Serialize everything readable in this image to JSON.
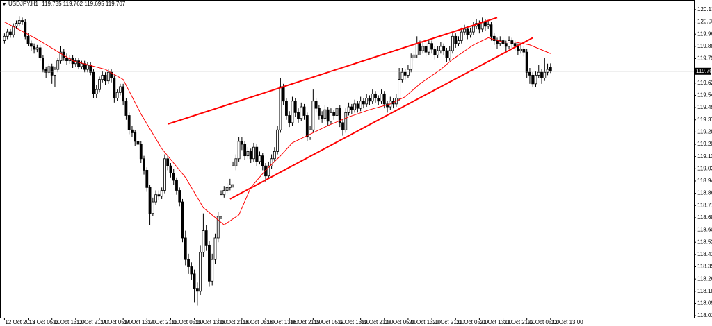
{
  "chart_data": {
    "type": "candlestick",
    "symbol": "USDJPY,H1",
    "ylim": [
      117.996,
      120.202
    ],
    "xlim": [
      -1.5,
      232.3
    ],
    "yticks": [
      {
        "value": 120.135,
        "label": "120.135"
      },
      {
        "value": 120.05,
        "label": "120.050"
      },
      {
        "value": 119.965,
        "label": "119.965"
      },
      {
        "value": 119.88,
        "label": "119.880"
      },
      {
        "value": 119.795,
        "label": "119.795"
      },
      {
        "value": 119.625,
        "label": "119.625"
      },
      {
        "value": 119.54,
        "label": "119.540"
      },
      {
        "value": 119.455,
        "label": "119.455"
      },
      {
        "value": 119.37,
        "label": "119.370"
      },
      {
        "value": 119.285,
        "label": "119.285"
      },
      {
        "value": 119.2,
        "label": "119.200"
      },
      {
        "value": 119.115,
        "label": "119.115"
      },
      {
        "value": 119.03,
        "label": "119.030"
      },
      {
        "value": 118.945,
        "label": "118.945"
      },
      {
        "value": 118.86,
        "label": "118.860"
      },
      {
        "value": 118.775,
        "label": "118.775"
      },
      {
        "value": 118.69,
        "label": "118.690"
      },
      {
        "value": 118.605,
        "label": "118.605"
      },
      {
        "value": 118.52,
        "label": "118.520"
      },
      {
        "value": 118.435,
        "label": "118.435"
      },
      {
        "value": 118.35,
        "label": "118.350"
      },
      {
        "value": 118.265,
        "label": "118.265"
      },
      {
        "value": 118.18,
        "label": "118.180"
      },
      {
        "value": 118.095,
        "label": "118.095"
      },
      {
        "value": 118.01,
        "label": "118.010"
      }
    ],
    "xticks": [
      {
        "value": 0,
        "label": "12 Oct 2015"
      },
      {
        "value": 8,
        "label": "13 Oct 05:00"
      },
      {
        "value": 16,
        "label": "13 Oct 13:00"
      },
      {
        "value": 24,
        "label": "13 Oct 21:00"
      },
      {
        "value": 32,
        "label": "14 Oct 05:00"
      },
      {
        "value": 40,
        "label": "14 Oct 13:00"
      },
      {
        "value": 48,
        "label": "14 Oct 21:00"
      },
      {
        "value": 56,
        "label": "15 Oct 05:00"
      },
      {
        "value": 64,
        "label": "15 Oct 13:00"
      },
      {
        "value": 72,
        "label": "15 Oct 21:00"
      },
      {
        "value": 80,
        "label": "16 Oct 05:00"
      },
      {
        "value": 88,
        "label": "16 Oct 13:00"
      },
      {
        "value": 96,
        "label": "16 Oct 21:00"
      },
      {
        "value": 104,
        "label": "19 Oct 05:00"
      },
      {
        "value": 112,
        "label": "19 Oct 13:00"
      },
      {
        "value": 120,
        "label": "19 Oct 21:00"
      },
      {
        "value": 128,
        "label": "20 Oct 05:00"
      },
      {
        "value": 136,
        "label": "20 Oct 13:00"
      },
      {
        "value": 144,
        "label": "20 Oct 21:00"
      },
      {
        "value": 152,
        "label": "21 Oct 05:00"
      },
      {
        "value": 160,
        "label": "21 Oct 13:00"
      },
      {
        "value": 168,
        "label": "21 Oct 21:00"
      },
      {
        "value": 176,
        "label": "22 Oct 05:00"
      },
      {
        "value": 184,
        "label": "22 Oct 13:00"
      }
    ],
    "candles": [
      [
        119.92,
        119.97,
        119.9,
        119.95
      ],
      [
        119.95,
        120.0,
        119.93,
        119.98
      ],
      [
        119.98,
        120.0,
        119.94,
        119.96
      ],
      [
        119.96,
        120.04,
        119.94,
        120.02
      ],
      [
        120.02,
        120.06,
        120.0,
        120.04
      ],
      [
        120.04,
        120.09,
        120.02,
        120.06
      ],
      [
        120.06,
        120.08,
        120.03,
        120.05
      ],
      [
        120.05,
        120.07,
        119.93,
        119.95
      ],
      [
        119.95,
        119.97,
        119.88,
        119.9
      ],
      [
        119.9,
        119.92,
        119.85,
        119.88
      ],
      [
        119.88,
        119.9,
        119.83,
        119.86
      ],
      [
        119.86,
        119.89,
        119.84,
        119.87
      ],
      [
        119.87,
        119.89,
        119.78,
        119.8
      ],
      [
        119.8,
        119.82,
        119.7,
        119.72
      ],
      [
        119.72,
        119.74,
        119.66,
        119.7
      ],
      [
        119.7,
        119.76,
        119.68,
        119.74
      ],
      [
        119.74,
        119.76,
        119.62,
        119.68
      ],
      [
        119.68,
        119.74,
        119.6,
        119.72
      ],
      [
        119.72,
        119.8,
        119.7,
        119.78
      ],
      [
        119.78,
        119.88,
        119.76,
        119.84
      ],
      [
        119.84,
        119.86,
        119.78,
        119.8
      ],
      [
        119.8,
        119.83,
        119.75,
        119.78
      ],
      [
        119.78,
        119.82,
        119.76,
        119.8
      ],
      [
        119.8,
        119.82,
        119.73,
        119.76
      ],
      [
        119.76,
        119.8,
        119.74,
        119.78
      ],
      [
        119.78,
        119.8,
        119.72,
        119.74
      ],
      [
        119.74,
        119.78,
        119.72,
        119.76
      ],
      [
        119.76,
        119.78,
        119.7,
        119.72
      ],
      [
        119.72,
        119.77,
        119.7,
        119.75
      ],
      [
        119.75,
        119.77,
        119.68,
        119.7
      ],
      [
        119.7,
        119.72,
        119.52,
        119.55
      ],
      [
        119.55,
        119.61,
        119.52,
        119.58
      ],
      [
        119.58,
        119.67,
        119.56,
        119.65
      ],
      [
        119.65,
        119.71,
        119.63,
        119.68
      ],
      [
        119.68,
        119.7,
        119.61,
        119.64
      ],
      [
        119.64,
        119.72,
        119.62,
        119.7
      ],
      [
        119.7,
        119.72,
        119.63,
        119.66
      ],
      [
        119.66,
        119.68,
        119.49,
        119.52
      ],
      [
        119.52,
        119.58,
        119.5,
        119.56
      ],
      [
        119.56,
        119.62,
        119.54,
        119.6
      ],
      [
        119.6,
        119.62,
        119.47,
        119.5
      ],
      [
        119.5,
        119.52,
        119.37,
        119.4
      ],
      [
        119.4,
        119.42,
        119.27,
        119.3
      ],
      [
        119.3,
        119.33,
        119.25,
        119.28
      ],
      [
        119.28,
        119.3,
        119.19,
        119.22
      ],
      [
        119.22,
        119.25,
        119.17,
        119.2
      ],
      [
        119.2,
        119.22,
        119.07,
        119.1
      ],
      [
        119.1,
        119.12,
        118.99,
        119.02
      ],
      [
        119.02,
        119.04,
        118.87,
        118.9
      ],
      [
        118.9,
        118.92,
        118.64,
        118.72
      ],
      [
        118.72,
        118.83,
        118.7,
        118.8
      ],
      [
        118.8,
        118.88,
        118.78,
        118.85
      ],
      [
        118.85,
        118.88,
        118.81,
        118.84
      ],
      [
        118.84,
        118.9,
        118.82,
        118.88
      ],
      [
        118.88,
        119.13,
        118.86,
        119.1
      ],
      [
        119.1,
        119.12,
        119.02,
        119.05
      ],
      [
        119.05,
        119.07,
        118.97,
        119.0
      ],
      [
        119.0,
        119.03,
        118.92,
        118.95
      ],
      [
        118.95,
        118.97,
        118.85,
        118.88
      ],
      [
        118.88,
        118.9,
        118.77,
        118.8
      ],
      [
        118.8,
        118.82,
        118.52,
        118.55
      ],
      [
        118.55,
        118.6,
        118.36,
        118.4
      ],
      [
        118.4,
        118.44,
        118.3,
        118.35
      ],
      [
        118.35,
        118.38,
        118.26,
        118.3
      ],
      [
        118.3,
        118.33,
        118.1,
        118.2
      ],
      [
        118.2,
        118.24,
        118.08,
        118.18
      ],
      [
        118.18,
        118.5,
        118.15,
        118.45
      ],
      [
        118.45,
        118.72,
        118.42,
        118.6
      ],
      [
        118.6,
        118.64,
        118.46,
        118.5
      ],
      [
        118.5,
        118.53,
        118.21,
        118.25
      ],
      [
        118.25,
        118.44,
        118.22,
        118.4
      ],
      [
        118.4,
        118.58,
        118.37,
        118.55
      ],
      [
        118.55,
        118.73,
        118.52,
        118.7
      ],
      [
        118.7,
        118.88,
        118.68,
        118.85
      ],
      [
        118.85,
        118.91,
        118.83,
        118.88
      ],
      [
        118.88,
        118.93,
        118.86,
        118.9
      ],
      [
        118.9,
        118.96,
        118.88,
        118.92
      ],
      [
        118.92,
        119.08,
        118.9,
        119.05
      ],
      [
        119.05,
        119.13,
        119.02,
        119.1
      ],
      [
        119.1,
        119.25,
        119.08,
        119.22
      ],
      [
        119.22,
        119.25,
        119.16,
        119.2
      ],
      [
        119.2,
        119.22,
        119.09,
        119.12
      ],
      [
        119.12,
        119.18,
        119.1,
        119.15
      ],
      [
        119.15,
        119.17,
        119.07,
        119.1
      ],
      [
        119.1,
        119.21,
        119.08,
        119.18
      ],
      [
        119.18,
        119.2,
        119.05,
        119.08
      ],
      [
        119.08,
        119.15,
        119.06,
        119.12
      ],
      [
        119.12,
        119.14,
        119.02,
        119.05
      ],
      [
        119.05,
        119.07,
        118.94,
        118.98
      ],
      [
        118.98,
        119.08,
        118.96,
        119.05
      ],
      [
        119.05,
        119.13,
        119.03,
        119.1
      ],
      [
        119.1,
        119.18,
        119.08,
        119.15
      ],
      [
        119.15,
        119.33,
        119.13,
        119.3
      ],
      [
        119.3,
        119.66,
        119.28,
        119.6
      ],
      [
        119.6,
        119.62,
        119.47,
        119.5
      ],
      [
        119.5,
        119.52,
        119.37,
        119.4
      ],
      [
        119.4,
        119.43,
        119.32,
        119.35
      ],
      [
        119.35,
        119.53,
        119.33,
        119.5
      ],
      [
        119.5,
        119.52,
        119.39,
        119.42
      ],
      [
        119.42,
        119.45,
        119.35,
        119.38
      ],
      [
        119.38,
        119.49,
        119.36,
        119.46
      ],
      [
        119.46,
        119.48,
        119.37,
        119.4
      ],
      [
        119.4,
        119.42,
        119.22,
        119.25
      ],
      [
        119.25,
        119.33,
        119.23,
        119.3
      ],
      [
        119.3,
        119.58,
        119.28,
        119.5
      ],
      [
        119.5,
        119.52,
        119.42,
        119.45
      ],
      [
        119.45,
        119.47,
        119.37,
        119.4
      ],
      [
        119.4,
        119.43,
        119.35,
        119.38
      ],
      [
        119.38,
        119.47,
        119.36,
        119.44
      ],
      [
        119.44,
        119.46,
        119.33,
        119.36
      ],
      [
        119.36,
        119.45,
        119.34,
        119.42
      ],
      [
        119.42,
        119.44,
        119.37,
        119.4
      ],
      [
        119.4,
        119.48,
        119.38,
        119.45
      ],
      [
        119.45,
        119.47,
        119.32,
        119.35
      ],
      [
        119.35,
        119.37,
        119.26,
        119.3
      ],
      [
        119.3,
        119.45,
        119.28,
        119.42
      ],
      [
        119.42,
        119.49,
        119.4,
        119.46
      ],
      [
        119.46,
        119.48,
        119.41,
        119.44
      ],
      [
        119.44,
        119.51,
        119.42,
        119.48
      ],
      [
        119.48,
        119.5,
        119.42,
        119.45
      ],
      [
        119.45,
        119.53,
        119.43,
        119.5
      ],
      [
        119.5,
        119.52,
        119.45,
        119.48
      ],
      [
        119.48,
        119.55,
        119.46,
        119.52
      ],
      [
        119.52,
        119.54,
        119.47,
        119.5
      ],
      [
        119.5,
        119.58,
        119.48,
        119.55
      ],
      [
        119.55,
        119.57,
        119.49,
        119.52
      ],
      [
        119.52,
        119.54,
        119.47,
        119.5
      ],
      [
        119.5,
        119.58,
        119.48,
        119.55
      ],
      [
        119.55,
        119.57,
        119.45,
        119.48
      ],
      [
        119.48,
        119.5,
        119.42,
        119.46
      ],
      [
        119.46,
        119.53,
        119.44,
        119.5
      ],
      [
        119.5,
        119.52,
        119.45,
        119.48
      ],
      [
        119.48,
        119.55,
        119.46,
        119.52
      ],
      [
        119.52,
        119.73,
        119.5,
        119.65
      ],
      [
        119.65,
        119.73,
        119.63,
        119.7
      ],
      [
        119.7,
        119.72,
        119.65,
        119.68
      ],
      [
        119.68,
        119.75,
        119.66,
        119.72
      ],
      [
        119.72,
        119.83,
        119.7,
        119.8
      ],
      [
        119.8,
        119.85,
        119.78,
        119.82
      ],
      [
        119.82,
        119.95,
        119.8,
        119.9
      ],
      [
        119.9,
        119.92,
        119.82,
        119.85
      ],
      [
        119.85,
        119.91,
        119.83,
        119.88
      ],
      [
        119.88,
        119.9,
        119.81,
        119.84
      ],
      [
        119.84,
        119.93,
        119.82,
        119.9
      ],
      [
        119.9,
        119.92,
        119.83,
        119.86
      ],
      [
        119.86,
        119.88,
        119.79,
        119.82
      ],
      [
        119.82,
        119.88,
        119.8,
        119.85
      ],
      [
        119.85,
        119.91,
        119.83,
        119.88
      ],
      [
        119.88,
        119.9,
        119.82,
        119.85
      ],
      [
        119.85,
        119.87,
        119.77,
        119.8
      ],
      [
        119.8,
        119.88,
        119.78,
        119.85
      ],
      [
        119.85,
        119.98,
        119.83,
        119.95
      ],
      [
        119.95,
        119.97,
        119.87,
        119.9
      ],
      [
        119.9,
        119.95,
        119.88,
        119.92
      ],
      [
        119.92,
        120.01,
        119.9,
        119.98
      ],
      [
        119.98,
        120.03,
        119.96,
        120.0
      ],
      [
        120.0,
        120.02,
        119.93,
        119.96
      ],
      [
        119.96,
        120.01,
        119.94,
        119.98
      ],
      [
        119.98,
        120.05,
        119.96,
        120.02
      ],
      [
        120.02,
        120.07,
        120.0,
        120.04
      ],
      [
        120.04,
        120.06,
        119.97,
        120.0
      ],
      [
        120.0,
        120.08,
        119.98,
        120.05
      ],
      [
        120.05,
        120.07,
        119.99,
        120.02
      ],
      [
        120.02,
        120.06,
        120.0,
        120.03
      ],
      [
        120.03,
        120.05,
        119.92,
        119.95
      ],
      [
        119.95,
        119.97,
        119.89,
        119.92
      ],
      [
        119.92,
        119.94,
        119.86,
        119.9
      ],
      [
        119.9,
        119.95,
        119.88,
        119.92
      ],
      [
        119.92,
        119.94,
        119.87,
        119.9
      ],
      [
        119.9,
        119.92,
        119.85,
        119.88
      ],
      [
        119.88,
        119.95,
        119.86,
        119.92
      ],
      [
        119.92,
        119.94,
        119.87,
        119.9
      ],
      [
        119.9,
        119.92,
        119.85,
        119.88
      ],
      [
        119.88,
        119.9,
        119.82,
        119.85
      ],
      [
        119.85,
        119.89,
        119.83,
        119.86
      ],
      [
        119.86,
        119.88,
        119.81,
        119.84
      ],
      [
        119.84,
        119.86,
        119.66,
        119.7
      ],
      [
        119.7,
        119.73,
        119.62,
        119.68
      ],
      [
        119.68,
        119.7,
        119.6,
        119.62
      ],
      [
        119.62,
        119.71,
        119.6,
        119.68
      ],
      [
        119.68,
        119.75,
        119.66,
        119.7
      ],
      [
        119.7,
        119.72,
        119.62,
        119.66
      ],
      [
        119.66,
        119.8,
        119.64,
        119.7
      ],
      [
        119.7,
        119.76,
        119.68,
        119.72
      ],
      [
        119.735,
        119.762,
        119.695,
        119.707
      ]
    ],
    "ma": {
      "color": "#ff0000",
      "x": [
        0,
        11,
        23,
        34,
        40,
        46,
        53,
        61,
        67,
        74,
        79,
        83,
        88,
        93,
        97,
        102,
        109,
        116,
        123,
        130,
        135,
        140,
        147,
        151,
        158,
        163,
        168,
        172,
        177,
        184
      ],
      "values": [
        120.05,
        119.93,
        119.78,
        119.72,
        119.65,
        119.41,
        119.17,
        118.97,
        118.76,
        118.64,
        118.71,
        118.9,
        119.02,
        119.12,
        119.21,
        119.26,
        119.33,
        119.39,
        119.44,
        119.48,
        119.53,
        119.62,
        119.72,
        119.79,
        119.89,
        119.94,
        119.91,
        119.91,
        119.89,
        119.83
      ]
    },
    "trendlines": [
      {
        "color": "#ff0000",
        "x": [
          55,
          166
        ],
        "values": [
          119.34,
          120.08
        ]
      },
      {
        "color": "#ff0000",
        "x": [
          76,
          178
        ],
        "values": [
          118.82,
          119.94
        ]
      }
    ]
  }
}
